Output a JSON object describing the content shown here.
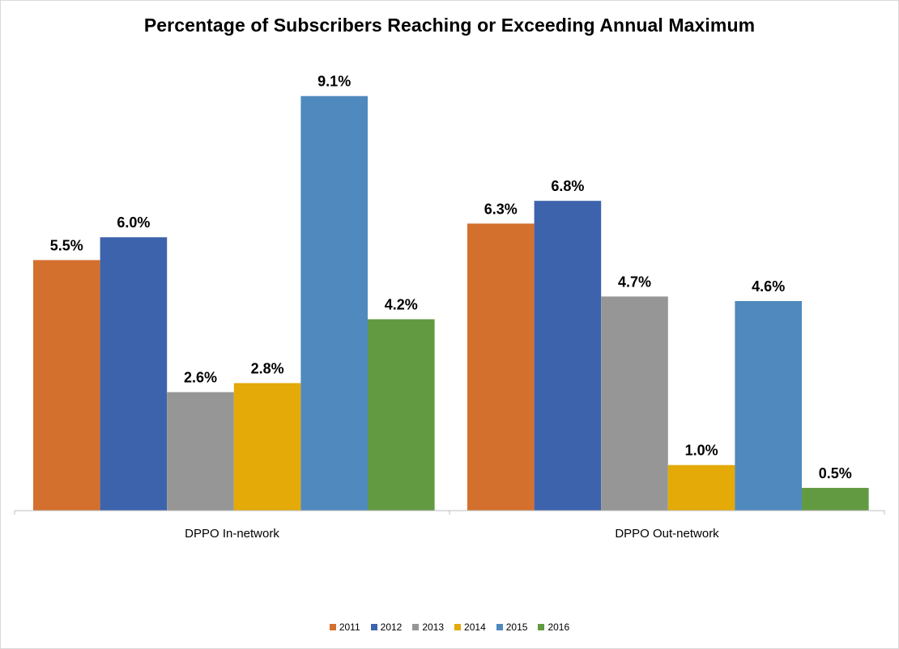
{
  "chart_data": {
    "type": "bar",
    "title": "Percentage of Subscribers Reaching or Exceeding Annual Maximum",
    "categories": [
      "DPPO In-network",
      "DPPO Out-network"
    ],
    "series": [
      {
        "name": "2011",
        "color": "#D4702E",
        "values": [
          5.5,
          6.3
        ],
        "labels": [
          "5.5%",
          "6.3%"
        ]
      },
      {
        "name": "2012",
        "color": "#3D63AC",
        "values": [
          6.0,
          6.8
        ],
        "labels": [
          "6.0%",
          "6.8%"
        ]
      },
      {
        "name": "2013",
        "color": "#969696",
        "values": [
          2.6,
          4.7
        ],
        "labels": [
          "2.6%",
          "4.7%"
        ]
      },
      {
        "name": "2014",
        "color": "#E3AA08",
        "values": [
          2.8,
          1.0
        ],
        "labels": [
          "2.8%",
          "1.0%"
        ]
      },
      {
        "name": "2015",
        "color": "#4F89BE",
        "values": [
          9.1,
          4.6
        ],
        "labels": [
          "9.1%",
          "4.6%"
        ]
      },
      {
        "name": "2016",
        "color": "#629A41",
        "values": [
          4.2,
          0.5
        ],
        "labels": [
          "4.2%",
          "0.5%"
        ]
      }
    ],
    "xlabel": "",
    "ylabel": "",
    "ylim": [
      0,
      10
    ],
    "grid": false,
    "legend": "bottom"
  }
}
